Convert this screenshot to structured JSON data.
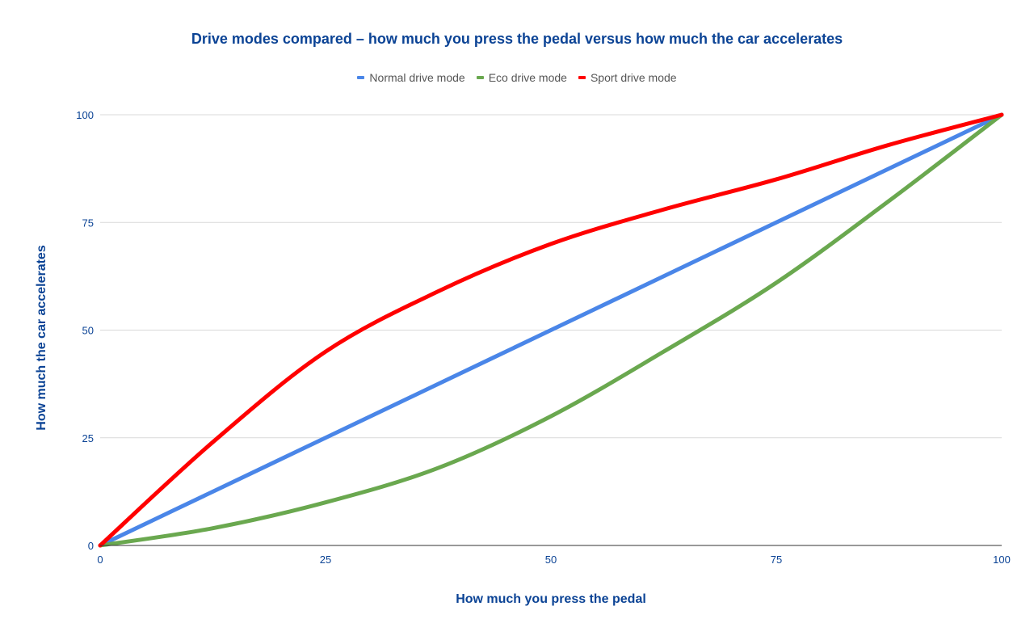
{
  "chart_data": {
    "type": "line",
    "title": "Drive modes compared – how much you press the pedal versus how much the car accelerates",
    "xlabel": "How much you press the pedal",
    "ylabel": "How much the car accelerates",
    "xlim": [
      0,
      100
    ],
    "ylim": [
      0,
      100
    ],
    "xticks": [
      "0",
      "25",
      "50",
      "75",
      "100"
    ],
    "yticks": [
      "0",
      "25",
      "50",
      "75",
      "100"
    ],
    "grid": true,
    "legend_position": "top",
    "x": [
      0,
      12.5,
      25,
      37.5,
      50,
      62.5,
      75,
      87.5,
      100
    ],
    "series": [
      {
        "name": "Normal drive mode",
        "color": "#4a86e8",
        "values": [
          0,
          12.5,
          25,
          37.5,
          50,
          62.5,
          75,
          87.5,
          100
        ]
      },
      {
        "name": "Eco drive mode",
        "color": "#6aa84f",
        "values": [
          0,
          4,
          10,
          18,
          30,
          45,
          61,
          80,
          100
        ]
      },
      {
        "name": "Sport drive mode",
        "color": "#ff0000",
        "values": [
          0,
          24,
          45,
          59,
          70,
          78,
          85,
          93,
          100
        ]
      }
    ]
  },
  "legend": {
    "items": [
      {
        "label": "Normal drive mode",
        "color": "#4a86e8"
      },
      {
        "label": "Eco drive mode",
        "color": "#6aa84f"
      },
      {
        "label": "Sport drive mode",
        "color": "#ff0000"
      }
    ]
  }
}
